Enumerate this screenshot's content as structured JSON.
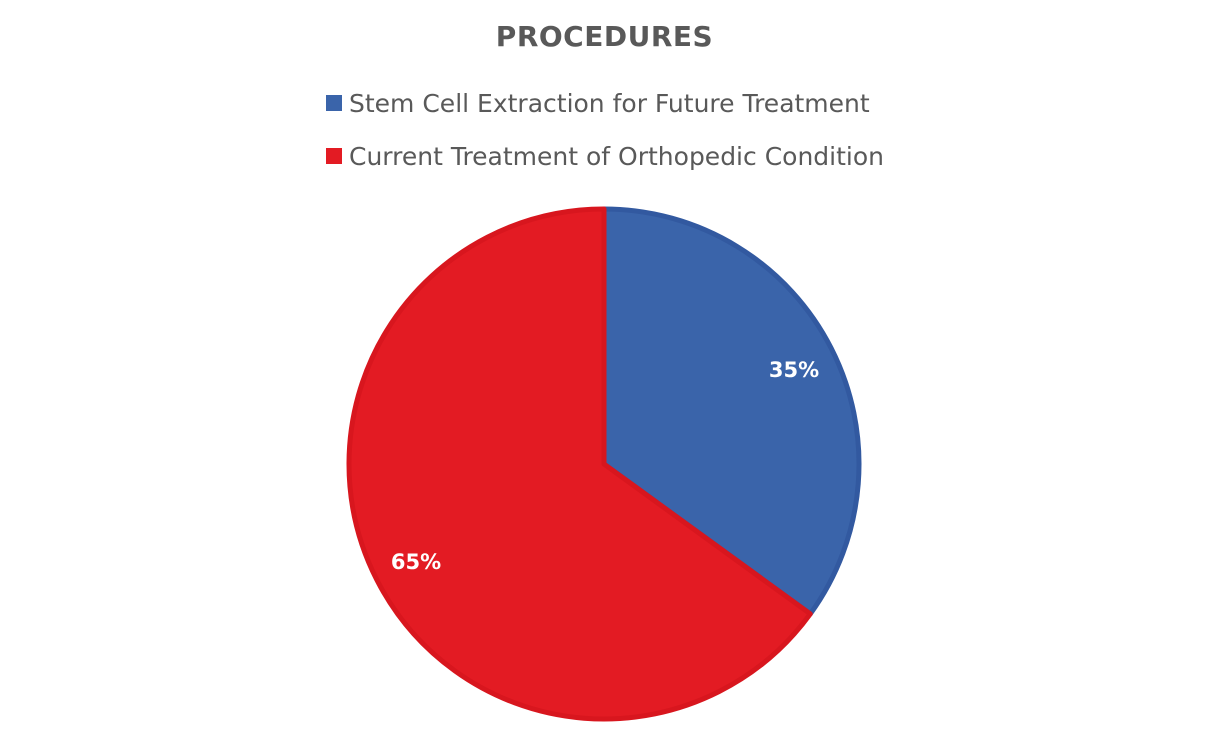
{
  "chart_data": {
    "type": "pie",
    "title": "PROCEDURES",
    "categories": [
      "Stem Cell Extraction for Future Treatment",
      "Current Treatment of Orthopedic Condition"
    ],
    "values": [
      35,
      65
    ],
    "labels": [
      "35%",
      "65%"
    ],
    "colors": [
      "#3A64AA",
      "#E31B23"
    ],
    "edge_colors": [
      "#3259A0",
      "#D8161E"
    ],
    "legend_position": "top",
    "start_angle_deg": 0,
    "direction": "clockwise"
  },
  "legend": {
    "items": [
      {
        "label": "Stem Cell Extraction for Future Treatment",
        "color": "#3A64AA"
      },
      {
        "label": "Current Treatment of Orthopedic Condition",
        "color": "#E31B23"
      }
    ]
  }
}
